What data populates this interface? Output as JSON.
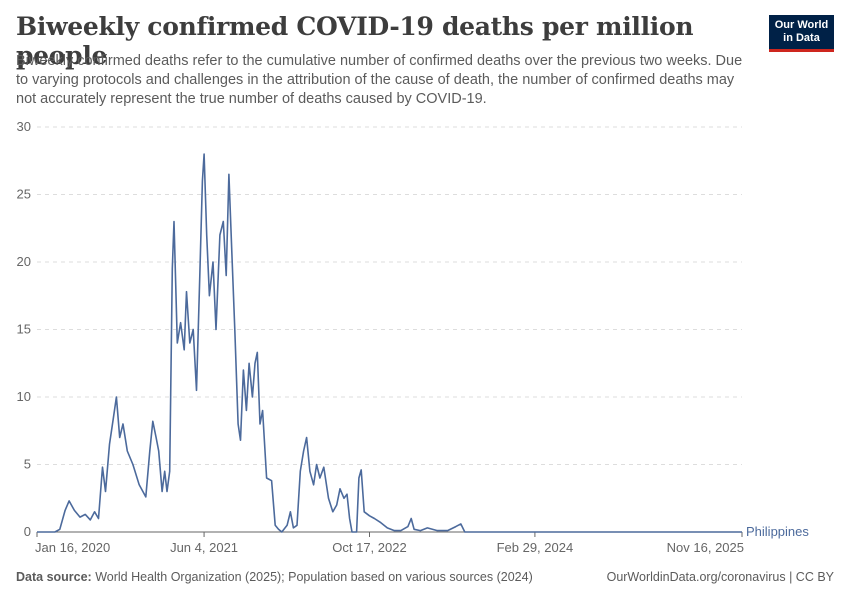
{
  "header": {
    "title": "Biweekly confirmed COVID-19 deaths per million people",
    "subtitle": "Biweekly confirmed deaths refer to the cumulative number of confirmed deaths over the previous two weeks. Due to varying protocols and challenges in the attribution of the cause of death, the number of confirmed deaths may not accurately represent the true number of deaths caused by COVID-19."
  },
  "logo": {
    "line1": "Our World",
    "line2": "in Data"
  },
  "footer": {
    "source_label": "Data source:",
    "source_text": " World Health Organization (2025); Population based on various sources (2024)",
    "credit": "OurWorldinData.org/coronavirus | CC BY"
  },
  "colors": {
    "series": "#4c6a9c",
    "grid": "#dddddd",
    "axis": "#666666",
    "text": "#666666"
  },
  "chart_data": {
    "type": "line",
    "title": "Biweekly confirmed COVID-19 deaths per million people",
    "xlabel": "",
    "ylabel": "",
    "ylim": [
      0,
      30
    ],
    "xlim": [
      "2020-01-16",
      "2025-11-16"
    ],
    "yticks": [
      0,
      5,
      10,
      15,
      20,
      25,
      30
    ],
    "xticks": [
      {
        "date": "2020-01-16",
        "label": "Jan 16, 2020"
      },
      {
        "date": "2021-06-04",
        "label": "Jun 4, 2021"
      },
      {
        "date": "2022-10-17",
        "label": "Oct 17, 2022"
      },
      {
        "date": "2024-02-29",
        "label": "Feb 29, 2024"
      },
      {
        "date": "2025-11-16",
        "label": "Nov 16, 2025"
      }
    ],
    "grid": "horizontal dashed",
    "legend": "right end of line",
    "series": [
      {
        "name": "Philippines",
        "points": [
          [
            "2020-01-16",
            0
          ],
          [
            "2020-03-10",
            0
          ],
          [
            "2020-03-25",
            0.2
          ],
          [
            "2020-04-10",
            1.6
          ],
          [
            "2020-04-22",
            2.3
          ],
          [
            "2020-05-08",
            1.6
          ],
          [
            "2020-05-25",
            1.1
          ],
          [
            "2020-06-10",
            1.3
          ],
          [
            "2020-06-25",
            0.9
          ],
          [
            "2020-07-08",
            1.5
          ],
          [
            "2020-07-20",
            1.0
          ],
          [
            "2020-08-01",
            4.8
          ],
          [
            "2020-08-10",
            3.0
          ],
          [
            "2020-08-22",
            6.5
          ],
          [
            "2020-09-02",
            8.3
          ],
          [
            "2020-09-12",
            10.0
          ],
          [
            "2020-09-22",
            7.0
          ],
          [
            "2020-10-02",
            8.0
          ],
          [
            "2020-10-15",
            6.0
          ],
          [
            "2020-11-01",
            5.0
          ],
          [
            "2020-11-20",
            3.5
          ],
          [
            "2020-12-10",
            2.6
          ],
          [
            "2020-12-22",
            6.0
          ],
          [
            "2020-12-31",
            8.2
          ],
          [
            "2021-01-10",
            7.0
          ],
          [
            "2021-01-18",
            6.0
          ],
          [
            "2021-01-28",
            3.0
          ],
          [
            "2021-02-05",
            4.5
          ],
          [
            "2021-02-12",
            3.0
          ],
          [
            "2021-02-20",
            4.5
          ],
          [
            "2021-02-28",
            19.5
          ],
          [
            "2021-03-05",
            23.0
          ],
          [
            "2021-03-15",
            14.0
          ],
          [
            "2021-03-25",
            15.5
          ],
          [
            "2021-04-05",
            13.5
          ],
          [
            "2021-04-12",
            17.8
          ],
          [
            "2021-04-22",
            14.0
          ],
          [
            "2021-05-02",
            15.0
          ],
          [
            "2021-05-12",
            10.5
          ],
          [
            "2021-05-22",
            19.0
          ],
          [
            "2021-05-30",
            26.0
          ],
          [
            "2021-06-04",
            28.0
          ],
          [
            "2021-06-12",
            22.0
          ],
          [
            "2021-06-20",
            17.5
          ],
          [
            "2021-07-01",
            20.0
          ],
          [
            "2021-07-10",
            15.0
          ],
          [
            "2021-07-22",
            22.0
          ],
          [
            "2021-08-01",
            23.0
          ],
          [
            "2021-08-10",
            19.0
          ],
          [
            "2021-08-18",
            26.5
          ],
          [
            "2021-08-28",
            20.0
          ],
          [
            "2021-09-05",
            15.0
          ],
          [
            "2021-09-15",
            8.0
          ],
          [
            "2021-09-22",
            6.8
          ],
          [
            "2021-10-01",
            12.0
          ],
          [
            "2021-10-10",
            9.0
          ],
          [
            "2021-10-18",
            12.5
          ],
          [
            "2021-10-28",
            10.0
          ],
          [
            "2021-11-05",
            12.5
          ],
          [
            "2021-11-12",
            13.3
          ],
          [
            "2021-11-20",
            8.0
          ],
          [
            "2021-11-28",
            9.0
          ],
          [
            "2021-12-10",
            4.0
          ],
          [
            "2021-12-25",
            3.8
          ],
          [
            "2022-01-05",
            0.5
          ],
          [
            "2022-01-15",
            0.2
          ],
          [
            "2022-01-25",
            0.0
          ],
          [
            "2022-02-10",
            0.5
          ],
          [
            "2022-02-20",
            1.5
          ],
          [
            "2022-03-01",
            0.3
          ],
          [
            "2022-03-12",
            0.5
          ],
          [
            "2022-03-22",
            4.5
          ],
          [
            "2022-04-01",
            6.0
          ],
          [
            "2022-04-10",
            7.0
          ],
          [
            "2022-04-20",
            4.5
          ],
          [
            "2022-05-01",
            3.5
          ],
          [
            "2022-05-10",
            5.0
          ],
          [
            "2022-05-20",
            4.0
          ],
          [
            "2022-06-01",
            4.8
          ],
          [
            "2022-06-15",
            2.5
          ],
          [
            "2022-06-28",
            1.5
          ],
          [
            "2022-07-10",
            2.0
          ],
          [
            "2022-07-20",
            3.2
          ],
          [
            "2022-08-01",
            2.5
          ],
          [
            "2022-08-10",
            2.8
          ],
          [
            "2022-08-18",
            1.0
          ],
          [
            "2022-08-25",
            0.0
          ],
          [
            "2022-09-08",
            0.0
          ],
          [
            "2022-09-15",
            4.0
          ],
          [
            "2022-09-22",
            4.6
          ],
          [
            "2022-10-01",
            1.5
          ],
          [
            "2022-10-17",
            1.2
          ],
          [
            "2022-11-01",
            1.0
          ],
          [
            "2022-11-20",
            0.7
          ],
          [
            "2022-12-10",
            0.3
          ],
          [
            "2022-12-31",
            0.1
          ],
          [
            "2023-01-20",
            0.1
          ],
          [
            "2023-02-10",
            0.4
          ],
          [
            "2023-02-20",
            1.0
          ],
          [
            "2023-03-01",
            0.2
          ],
          [
            "2023-03-20",
            0.1
          ],
          [
            "2023-04-10",
            0.3
          ],
          [
            "2023-05-10",
            0.1
          ],
          [
            "2023-06-10",
            0.1
          ],
          [
            "2023-07-05",
            0.4
          ],
          [
            "2023-07-20",
            0.6
          ],
          [
            "2023-08-01",
            0.0
          ],
          [
            "2023-09-01",
            0.0
          ],
          [
            "2024-01-01",
            0.0
          ],
          [
            "2025-11-16",
            0.0
          ]
        ]
      }
    ]
  }
}
